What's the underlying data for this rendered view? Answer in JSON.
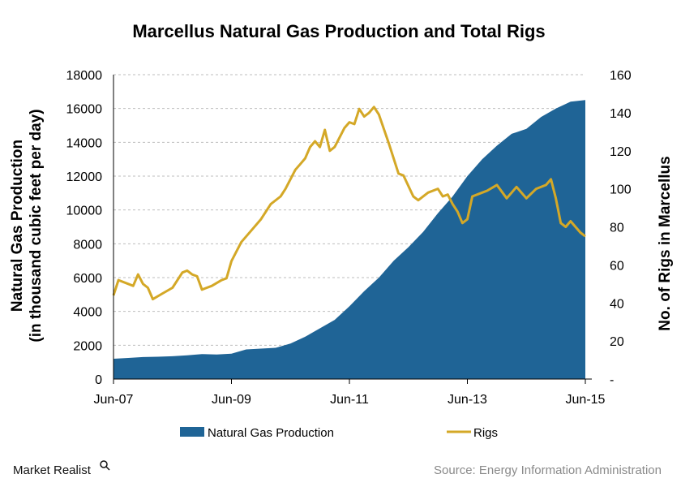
{
  "chart_data": {
    "type": "area",
    "title": "Marcellus Natural Gas Production and Total Rigs",
    "ylabel_left_line1": "Natural Gas Production",
    "ylabel_left_line2": "(in thousand cubic feet per day)",
    "ylabel_right": "No. of Rigs in Marcellus",
    "x_tick_labels": [
      "Jun-07",
      "Jun-09",
      "Jun-11",
      "Jun-13",
      "Jun-15"
    ],
    "x_range": [
      "Jun-07",
      "Jun-15"
    ],
    "y_left_ticks": [
      "0",
      "2000",
      "4000",
      "6000",
      "8000",
      "10000",
      "12000",
      "14000",
      "16000",
      "18000"
    ],
    "y_left_range": [
      0,
      18000
    ],
    "y_right_ticks": [
      "-",
      "20",
      "40",
      "60",
      "80",
      "100",
      "120",
      "140",
      "160"
    ],
    "y_right_range": [
      0,
      160
    ],
    "grid": "horizontal dashed",
    "legend_position": "bottom",
    "series": [
      {
        "name": "Natural Gas Production",
        "kind": "area",
        "axis": "left",
        "color": "#1f6496",
        "points": [
          [
            "Jun-07",
            1200
          ],
          [
            "Sep-07",
            1250
          ],
          [
            "Dec-07",
            1300
          ],
          [
            "Mar-08",
            1320
          ],
          [
            "Jun-08",
            1350
          ],
          [
            "Sep-08",
            1400
          ],
          [
            "Dec-08",
            1480
          ],
          [
            "Mar-09",
            1450
          ],
          [
            "Jun-09",
            1500
          ],
          [
            "Sep-09",
            1750
          ],
          [
            "Dec-09",
            1800
          ],
          [
            "Mar-10",
            1850
          ],
          [
            "Jun-10",
            2100
          ],
          [
            "Sep-10",
            2500
          ],
          [
            "Dec-10",
            3000
          ],
          [
            "Mar-11",
            3500
          ],
          [
            "Jun-11",
            4300
          ],
          [
            "Sep-11",
            5200
          ],
          [
            "Dec-11",
            6000
          ],
          [
            "Mar-12",
            7000
          ],
          [
            "Jun-12",
            7800
          ],
          [
            "Sep-12",
            8700
          ],
          [
            "Dec-12",
            9800
          ],
          [
            "Mar-13",
            10800
          ],
          [
            "Jun-13",
            12000
          ],
          [
            "Sep-13",
            13000
          ],
          [
            "Dec-13",
            13800
          ],
          [
            "Mar-14",
            14500
          ],
          [
            "Jun-14",
            14800
          ],
          [
            "Sep-14",
            15500
          ],
          [
            "Dec-14",
            16000
          ],
          [
            "Mar-15",
            16400
          ],
          [
            "Jun-15",
            16500
          ]
        ]
      },
      {
        "name": "Rigs",
        "kind": "line",
        "axis": "right",
        "color": "#d4a827",
        "points": [
          [
            "Jun-07",
            44
          ],
          [
            "Jul-07",
            52
          ],
          [
            "Sep-07",
            50
          ],
          [
            "Oct-07",
            49
          ],
          [
            "Nov-07",
            55
          ],
          [
            "Dec-07",
            50
          ],
          [
            "Jan-08",
            48
          ],
          [
            "Feb-08",
            42
          ],
          [
            "Apr-08",
            45
          ],
          [
            "Jun-08",
            48
          ],
          [
            "Aug-08",
            56
          ],
          [
            "Sep-08",
            57
          ],
          [
            "Oct-08",
            55
          ],
          [
            "Nov-08",
            54
          ],
          [
            "Dec-08",
            47
          ],
          [
            "Feb-09",
            49
          ],
          [
            "Apr-09",
            52
          ],
          [
            "May-09",
            53
          ],
          [
            "Jun-09",
            62
          ],
          [
            "Aug-09",
            72
          ],
          [
            "Oct-09",
            78
          ],
          [
            "Dec-09",
            84
          ],
          [
            "Feb-10",
            92
          ],
          [
            "Apr-10",
            96
          ],
          [
            "May-10",
            100
          ],
          [
            "Jul-10",
            110
          ],
          [
            "Aug-10",
            113
          ],
          [
            "Sep-10",
            116
          ],
          [
            "Oct-10",
            122
          ],
          [
            "Nov-10",
            125
          ],
          [
            "Dec-10",
            122
          ],
          [
            "Jan-11",
            131
          ],
          [
            "Feb-11",
            120
          ],
          [
            "Mar-11",
            122
          ],
          [
            "Apr-11",
            127
          ],
          [
            "May-11",
            132
          ],
          [
            "Jun-11",
            135
          ],
          [
            "Jul-11",
            134
          ],
          [
            "Aug-11",
            142
          ],
          [
            "Sep-11",
            138
          ],
          [
            "Oct-11",
            140
          ],
          [
            "Nov-11",
            143
          ],
          [
            "Dec-11",
            139
          ],
          [
            "Feb-12",
            124
          ],
          [
            "Apr-12",
            108
          ],
          [
            "May-12",
            107
          ],
          [
            "Jul-12",
            96
          ],
          [
            "Aug-12",
            94
          ],
          [
            "Oct-12",
            98
          ],
          [
            "Dec-12",
            100
          ],
          [
            "Jan-13",
            96
          ],
          [
            "Feb-13",
            97
          ],
          [
            "Mar-13",
            92
          ],
          [
            "Apr-13",
            88
          ],
          [
            "May-13",
            82
          ],
          [
            "Jun-13",
            84
          ],
          [
            "Jul-13",
            96
          ],
          [
            "Sep-13",
            98
          ],
          [
            "Oct-13",
            99
          ],
          [
            "Dec-13",
            102
          ],
          [
            "Feb-14",
            95
          ],
          [
            "Mar-14",
            98
          ],
          [
            "Apr-14",
            101
          ],
          [
            "Jun-14",
            95
          ],
          [
            "Aug-14",
            100
          ],
          [
            "Oct-14",
            102
          ],
          [
            "Nov-14",
            105
          ],
          [
            "Dec-14",
            95
          ],
          [
            "Jan-15",
            82
          ],
          [
            "Feb-15",
            80
          ],
          [
            "Mar-15",
            83
          ],
          [
            "May-15",
            77
          ],
          [
            "Jun-15",
            75
          ]
        ]
      }
    ]
  },
  "legend": {
    "production_label": "Natural Gas Production",
    "rigs_label": "Rigs"
  },
  "footer": {
    "brand": "Market Realist",
    "source": "Source:  Energy Information  Administration"
  }
}
